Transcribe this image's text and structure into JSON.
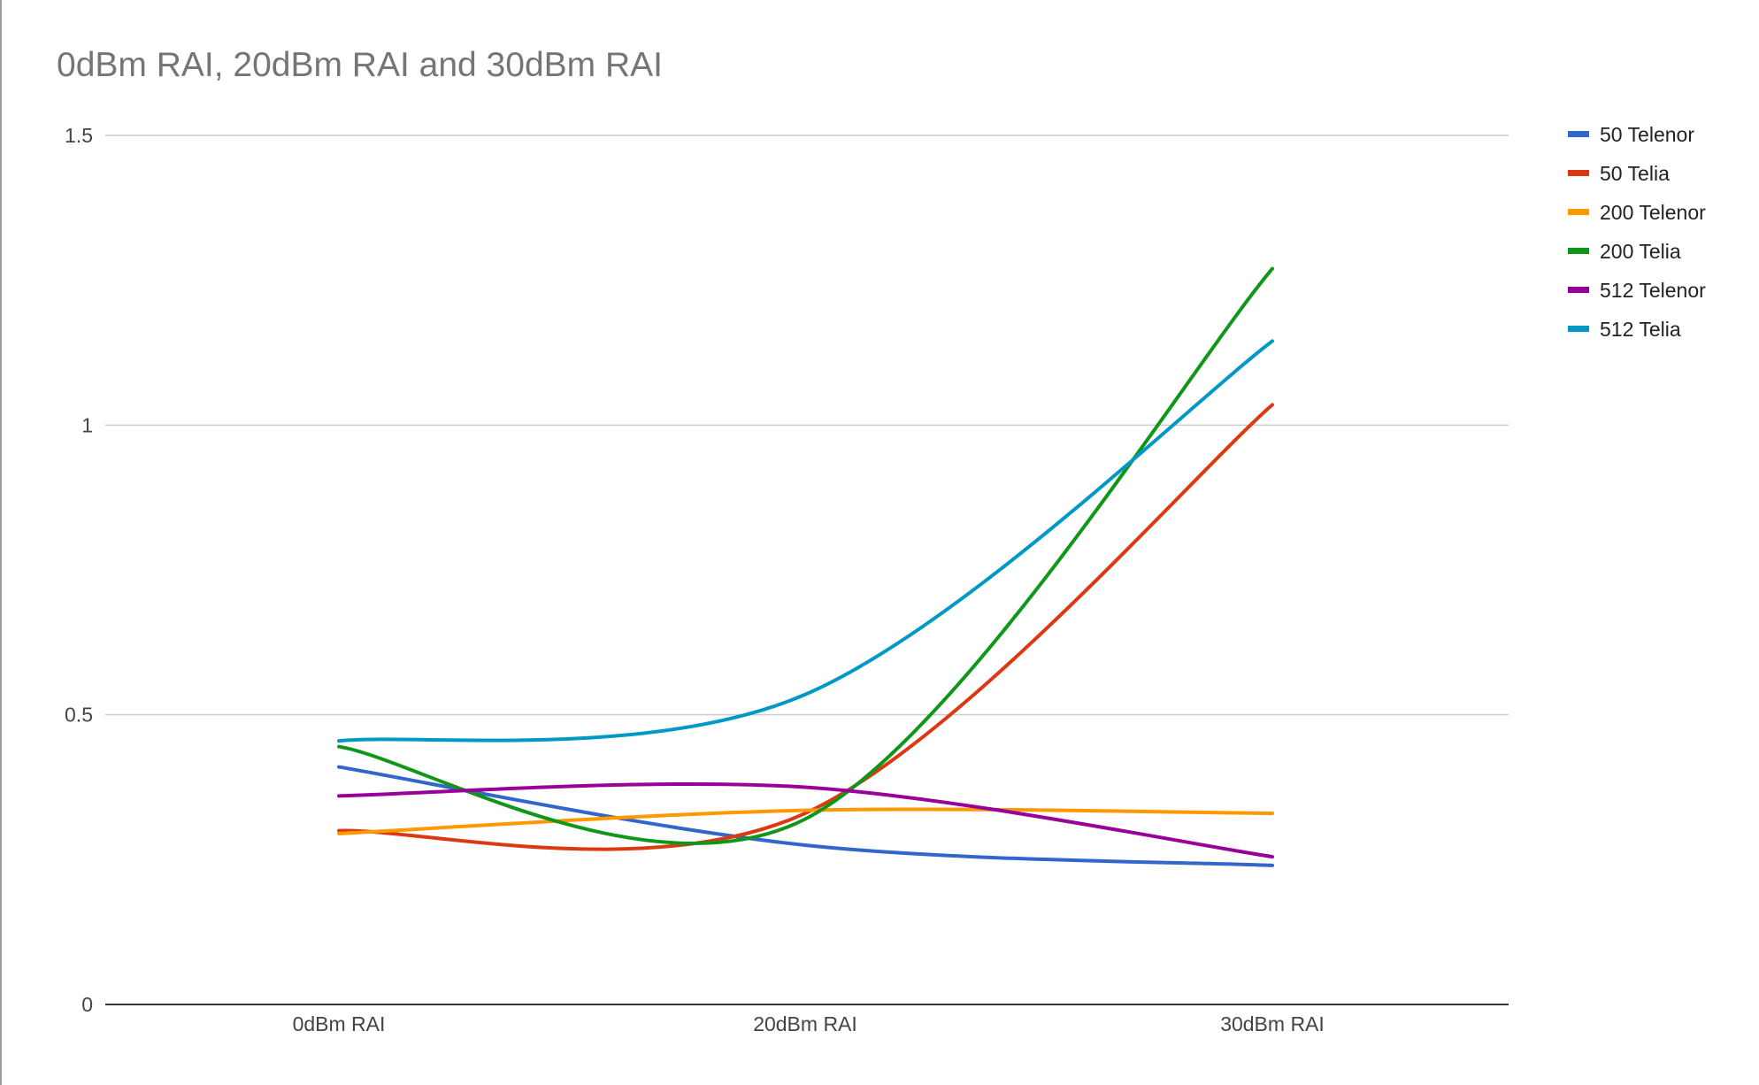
{
  "chart_data": {
    "type": "line",
    "title": "0dBm RAI, 20dBm RAI and 30dBm RAI",
    "xlabel": "",
    "ylabel": "",
    "categories": [
      "0dBm RAI",
      "20dBm RAI",
      "30dBm RAI"
    ],
    "ylim": [
      0,
      1.5
    ],
    "yticks": [
      "0",
      "0.5",
      "1",
      "1.5"
    ],
    "yticks_values": [
      0,
      0.5,
      1,
      1.5
    ],
    "grid": true,
    "smooth": true,
    "legend_position": "right",
    "series": [
      {
        "name": "50 Telenor",
        "color": "#3366cc",
        "values": [
          0.41,
          0.275,
          0.24
        ]
      },
      {
        "name": "50 Telia",
        "color": "#dc3912",
        "values": [
          0.3,
          0.33,
          1.035
        ]
      },
      {
        "name": "200 Telenor",
        "color": "#ff9900",
        "values": [
          0.295,
          0.335,
          0.33
        ]
      },
      {
        "name": "200 Telia",
        "color": "#109618",
        "values": [
          0.445,
          0.32,
          1.27
        ]
      },
      {
        "name": "512 Telenor",
        "color": "#990099",
        "values": [
          0.36,
          0.375,
          0.255
        ]
      },
      {
        "name": "512 Telia",
        "color": "#0099c6",
        "values": [
          0.455,
          0.535,
          1.145
        ]
      }
    ]
  }
}
